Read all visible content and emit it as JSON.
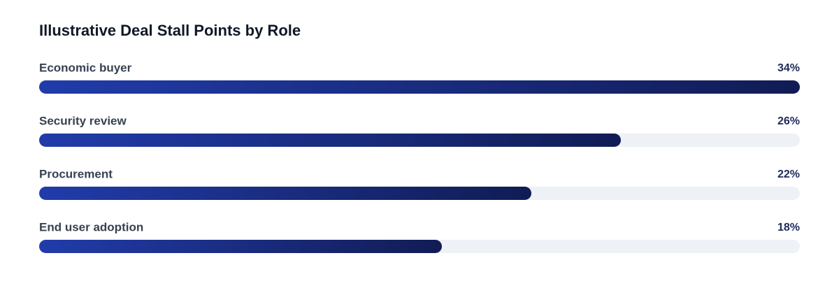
{
  "chart_data": {
    "type": "bar",
    "orientation": "horizontal",
    "title": "Illustrative Deal Stall Points by Role",
    "categories": [
      "Economic buyer",
      "Security review",
      "Procurement",
      "End user adoption"
    ],
    "values": [
      34,
      26,
      22,
      18
    ],
    "value_labels": [
      "34%",
      "26%",
      "22%",
      "18%"
    ],
    "gradient": [
      "#213caa",
      "#111c55"
    ],
    "track_color": "#eef1f5"
  }
}
